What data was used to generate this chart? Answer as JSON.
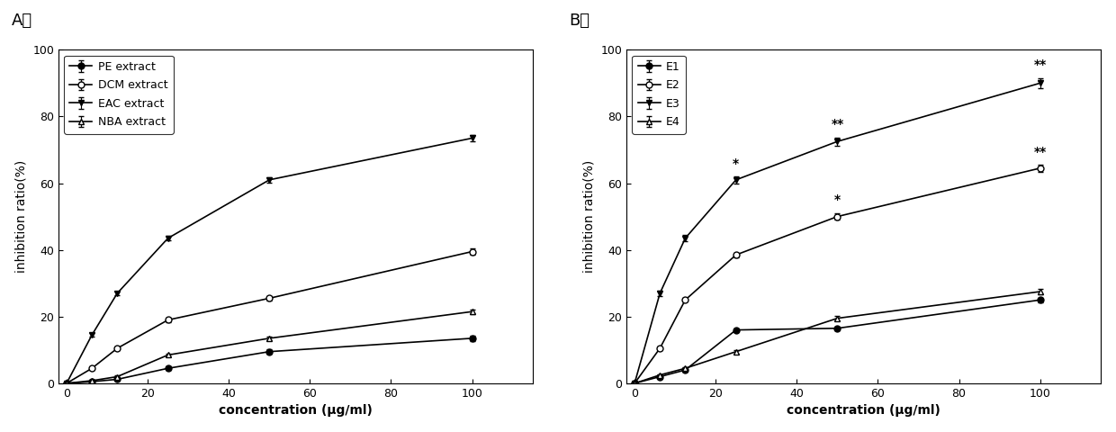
{
  "panel_A": {
    "xlabel": "concentration (μg/ml)",
    "ylabel": "inhibition ratio(%)",
    "xlim": [
      -2,
      115
    ],
    "ylim": [
      0,
      100
    ],
    "xticks": [
      0,
      20,
      40,
      60,
      80,
      100
    ],
    "yticks": [
      0,
      20,
      40,
      60,
      80,
      100
    ],
    "series": [
      {
        "label": "PE extract",
        "x": [
          0,
          6.25,
          12.5,
          25,
          50,
          100
        ],
        "y": [
          0,
          0.5,
          1.2,
          4.5,
          9.5,
          13.5
        ],
        "yerr": [
          0.0,
          0.3,
          0.4,
          0.5,
          0.6,
          0.8
        ],
        "marker": "o",
        "filled": true
      },
      {
        "label": "DCM extract",
        "x": [
          0,
          6.25,
          12.5,
          25,
          50,
          100
        ],
        "y": [
          0,
          4.5,
          10.5,
          19.0,
          25.5,
          39.5
        ],
        "yerr": [
          0.0,
          0.4,
          0.5,
          0.6,
          0.7,
          0.9
        ],
        "marker": "o",
        "filled": false
      },
      {
        "label": "EAC extract",
        "x": [
          0,
          6.25,
          12.5,
          25,
          50,
          100
        ],
        "y": [
          0,
          14.5,
          27.0,
          43.5,
          61.0,
          73.5
        ],
        "yerr": [
          0.0,
          0.5,
          0.6,
          0.7,
          0.8,
          1.0
        ],
        "marker": "v",
        "filled": true
      },
      {
        "label": "NBA extract",
        "x": [
          0,
          6.25,
          12.5,
          25,
          50,
          100
        ],
        "y": [
          0,
          0.8,
          2.0,
          8.5,
          13.5,
          21.5
        ],
        "yerr": [
          0.0,
          0.3,
          0.4,
          0.5,
          0.6,
          0.7
        ],
        "marker": "^",
        "filled": false
      }
    ]
  },
  "panel_B": {
    "xlabel": "concentration (μg/ml)",
    "ylabel": "inhibition ratio(%)",
    "xlim": [
      -2,
      115
    ],
    "ylim": [
      0,
      100
    ],
    "xticks": [
      0,
      20,
      40,
      60,
      80,
      100
    ],
    "yticks": [
      0,
      20,
      40,
      60,
      80,
      100
    ],
    "series": [
      {
        "label": "E1",
        "x": [
          0,
          6.25,
          12.5,
          25,
          50,
          100
        ],
        "y": [
          0,
          2.0,
          4.0,
          16.0,
          16.5,
          25.0
        ],
        "yerr": [
          0.0,
          0.3,
          0.4,
          0.5,
          0.6,
          0.7
        ],
        "marker": "o",
        "filled": true,
        "annotations": {}
      },
      {
        "label": "E2",
        "x": [
          0,
          6.25,
          12.5,
          25,
          50,
          100
        ],
        "y": [
          0,
          10.5,
          25.0,
          38.5,
          50.0,
          64.5
        ],
        "yerr": [
          0.0,
          0.5,
          0.6,
          0.7,
          1.0,
          1.0
        ],
        "marker": "o",
        "filled": false,
        "annotations": {
          "50.0": "*",
          "100.0": "**"
        }
      },
      {
        "label": "E3",
        "x": [
          0,
          6.25,
          12.5,
          25,
          50,
          100
        ],
        "y": [
          0,
          27.0,
          43.5,
          61.0,
          72.5,
          90.0
        ],
        "yerr": [
          0.0,
          0.8,
          0.9,
          1.0,
          1.2,
          1.5
        ],
        "marker": "v",
        "filled": true,
        "annotations": {
          "25.0": "*",
          "50.0": "**",
          "100.0": "**"
        }
      },
      {
        "label": "E4",
        "x": [
          0,
          6.25,
          12.5,
          25,
          50,
          100
        ],
        "y": [
          0,
          2.5,
          4.5,
          9.5,
          19.5,
          27.5
        ],
        "yerr": [
          0.0,
          0.3,
          0.4,
          0.5,
          0.7,
          0.8
        ],
        "marker": "^",
        "filled": false,
        "annotations": {}
      }
    ]
  },
  "figure_bg": "white",
  "font_size": 9,
  "label_font_size": 10,
  "tick_font_size": 9,
  "legend_font_size": 9,
  "annot_font_size": 10
}
